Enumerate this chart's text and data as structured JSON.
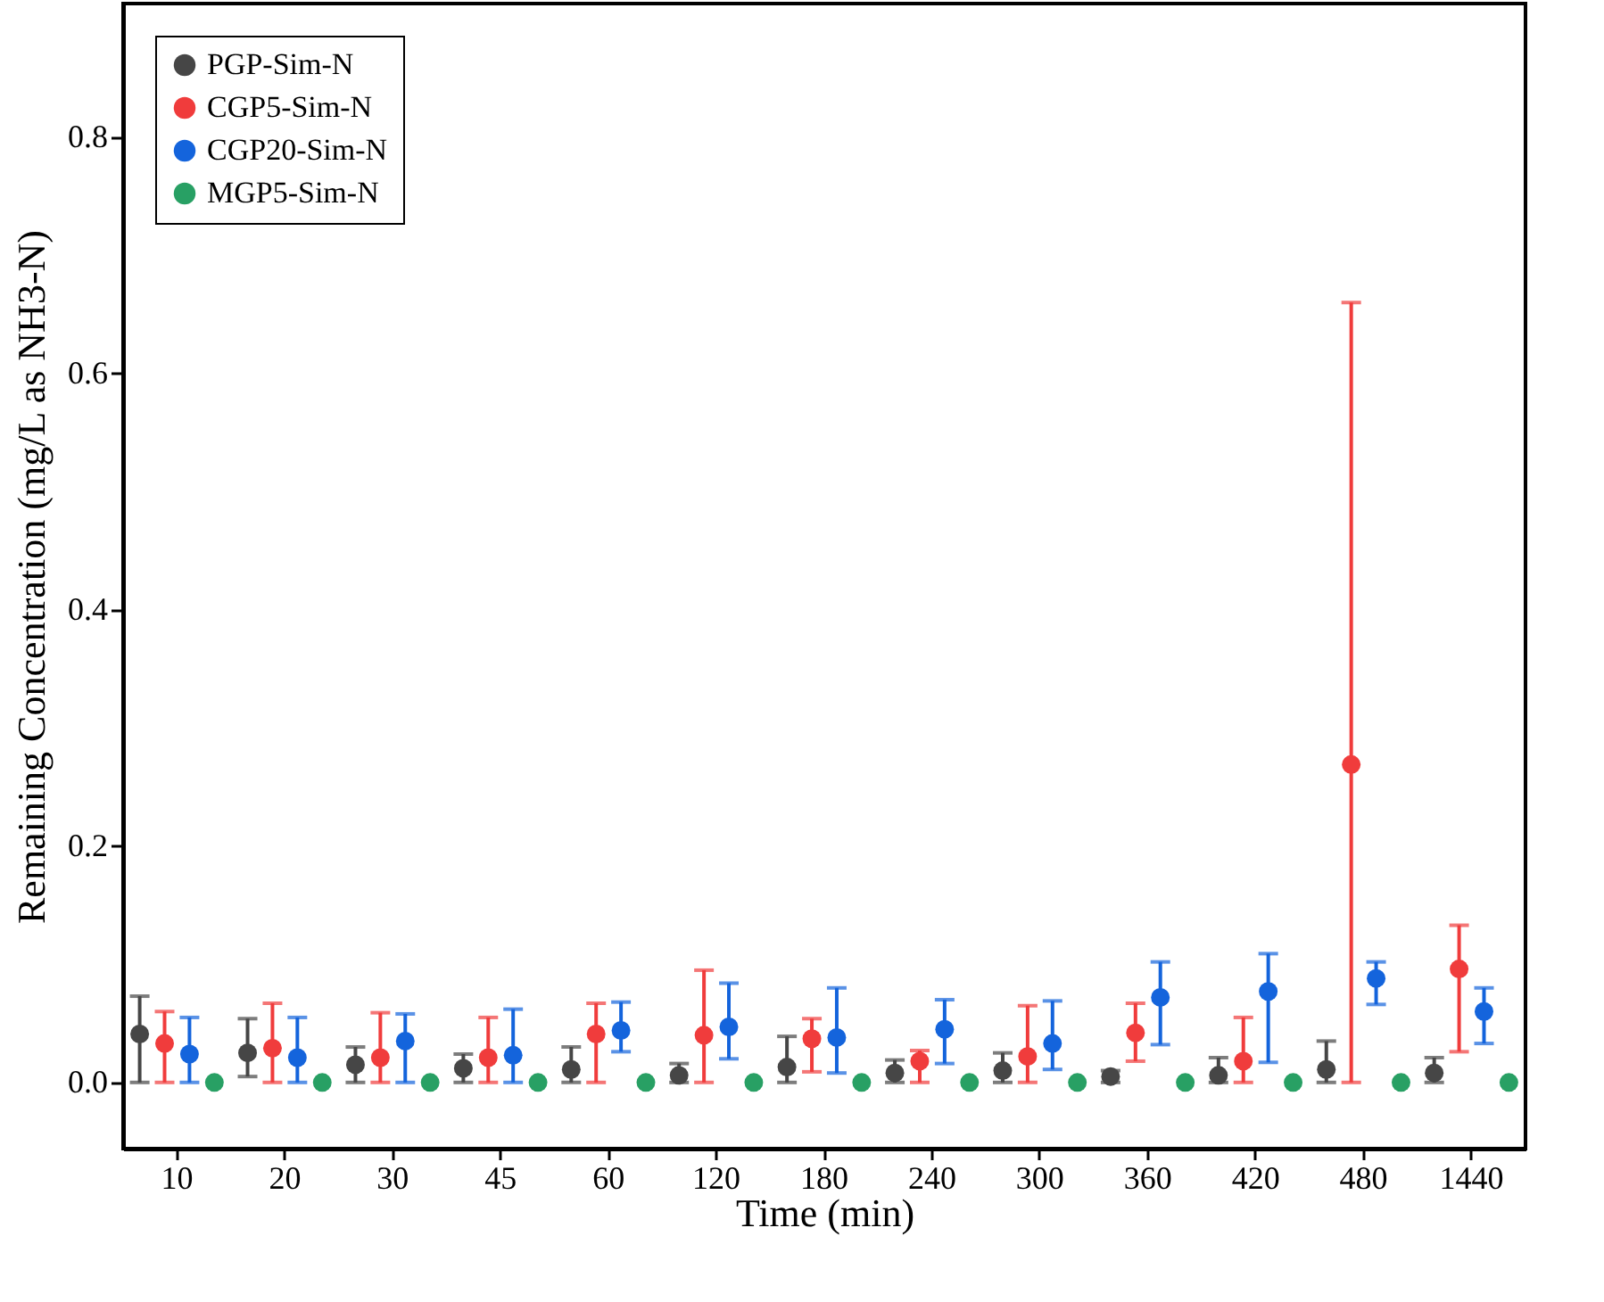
{
  "chart_data": {
    "type": "scatter",
    "xlabel": "Time (min)",
    "ylabel": "Remaining Concentration (mg/L as NH3-N)",
    "categories": [
      "10",
      "20",
      "30",
      "45",
      "60",
      "120",
      "180",
      "240",
      "300",
      "360",
      "420",
      "480",
      "1440"
    ],
    "series": [
      {
        "name": "PGP-Sim-N",
        "color": "#464646",
        "values": [
          0.041,
          0.025,
          0.015,
          0.012,
          0.011,
          0.006,
          0.013,
          0.008,
          0.01,
          0.005,
          0.006,
          0.011,
          0.008
        ],
        "errors": [
          [
            0,
            0.073
          ],
          [
            0.005,
            0.054
          ],
          [
            0,
            0.03
          ],
          [
            0,
            0.024
          ],
          [
            0,
            0.03
          ],
          [
            0,
            0.016
          ],
          [
            0,
            0.039
          ],
          [
            0,
            0.019
          ],
          [
            0,
            0.025
          ],
          [
            0,
            0.01
          ],
          [
            0,
            0.021
          ],
          [
            0,
            0.035
          ],
          [
            0,
            0.021
          ]
        ]
      },
      {
        "name": "CGP5-Sim-N",
        "color": "#f03c3c",
        "values": [
          0.033,
          0.029,
          0.021,
          0.021,
          0.041,
          0.04,
          0.037,
          0.018,
          0.022,
          0.042,
          0.018,
          0.269,
          0.096
        ],
        "errors": [
          [
            0,
            0.06
          ],
          [
            0,
            0.067
          ],
          [
            0,
            0.059
          ],
          [
            0,
            0.055
          ],
          [
            0,
            0.067
          ],
          [
            0,
            0.095
          ],
          [
            0.009,
            0.054
          ],
          [
            0,
            0.027
          ],
          [
            0,
            0.065
          ],
          [
            0.018,
            0.067
          ],
          [
            0,
            0.055
          ],
          [
            0,
            0.66
          ],
          [
            0.026,
            0.133
          ]
        ]
      },
      {
        "name": "CGP20-Sim-N",
        "color": "#1464dc",
        "values": [
          0.024,
          0.021,
          0.035,
          0.023,
          0.044,
          0.047,
          0.038,
          0.045,
          0.033,
          0.072,
          0.077,
          0.088,
          0.06
        ],
        "errors": [
          [
            0,
            0.055
          ],
          [
            0,
            0.055
          ],
          [
            0,
            0.058
          ],
          [
            0,
            0.062
          ],
          [
            0.026,
            0.068
          ],
          [
            0.02,
            0.084
          ],
          [
            0.008,
            0.08
          ],
          [
            0.016,
            0.07
          ],
          [
            0.011,
            0.069
          ],
          [
            0.032,
            0.102
          ],
          [
            0.017,
            0.109
          ],
          [
            0.066,
            0.102
          ],
          [
            0.033,
            0.08
          ]
        ]
      },
      {
        "name": "MGP5-Sim-N",
        "color": "#28a064",
        "values": [
          0,
          0,
          0,
          0,
          0,
          0,
          0,
          0,
          0,
          0,
          0,
          0,
          0
        ]
      }
    ],
    "ylim": [
      -0.056,
      0.913
    ],
    "yticks": [
      {
        "value": 0,
        "label": "0.0"
      },
      {
        "value": 0.2,
        "label": "0.2"
      },
      {
        "value": 0.4,
        "label": "0.4"
      },
      {
        "value": 0.6,
        "label": "0.6"
      },
      {
        "value": 0.8,
        "label": "0.8"
      }
    ],
    "grid": false,
    "legend": "top left",
    "marker": "circle"
  }
}
